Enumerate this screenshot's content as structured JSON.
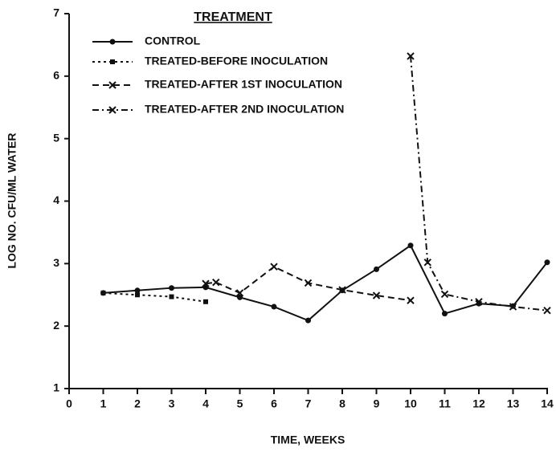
{
  "chart_data": {
    "type": "line",
    "xlabel": "TIME, WEEKS",
    "ylabel": "LOG NO. CFU/ML WATER",
    "legend_title": "TREATMENT",
    "xlim": [
      0,
      14
    ],
    "xticks": [
      0,
      1,
      2,
      3,
      4,
      5,
      6,
      7,
      8,
      9,
      10,
      11,
      12,
      13,
      14
    ],
    "ylim": [
      1,
      7
    ],
    "yticks": [
      1,
      2,
      3,
      4,
      5,
      6,
      7
    ],
    "legend": "upper left",
    "series": [
      {
        "name": "CONTROL",
        "color": "#111111",
        "line_style": "solid",
        "marker": "circle",
        "x": [
          1,
          2,
          3,
          4,
          5,
          6,
          7,
          8,
          9,
          10,
          11,
          12,
          13,
          14
        ],
        "values": [
          2.53,
          2.57,
          2.61,
          2.62,
          2.46,
          2.31,
          2.09,
          2.57,
          2.91,
          3.29,
          2.2,
          2.36,
          2.32,
          3.02
        ]
      },
      {
        "name": "TREATED-BEFORE INOCULATION",
        "color": "#111111",
        "line_style": "dotted",
        "marker": "square",
        "x": [
          1,
          2,
          3,
          4
        ],
        "values": [
          2.53,
          2.5,
          2.47,
          2.39
        ]
      },
      {
        "name": "TREATED-AFTER 1ST INOCULATION",
        "color": "#111111",
        "line_style": "dashed",
        "marker": "cross",
        "x": [
          4,
          4.3,
          5,
          6,
          7,
          8,
          9,
          10
        ],
        "values": [
          2.68,
          2.7,
          2.53,
          2.95,
          2.69,
          2.58,
          2.49,
          2.41
        ]
      },
      {
        "name": "TREATED-AFTER 2ND INOCULATION",
        "color": "#111111",
        "line_style": "dashdot",
        "marker": "cross",
        "x": [
          10,
          10.5,
          11,
          12,
          13,
          14
        ],
        "values": [
          6.32,
          3.02,
          2.51,
          2.39,
          2.31,
          2.25
        ]
      }
    ]
  }
}
